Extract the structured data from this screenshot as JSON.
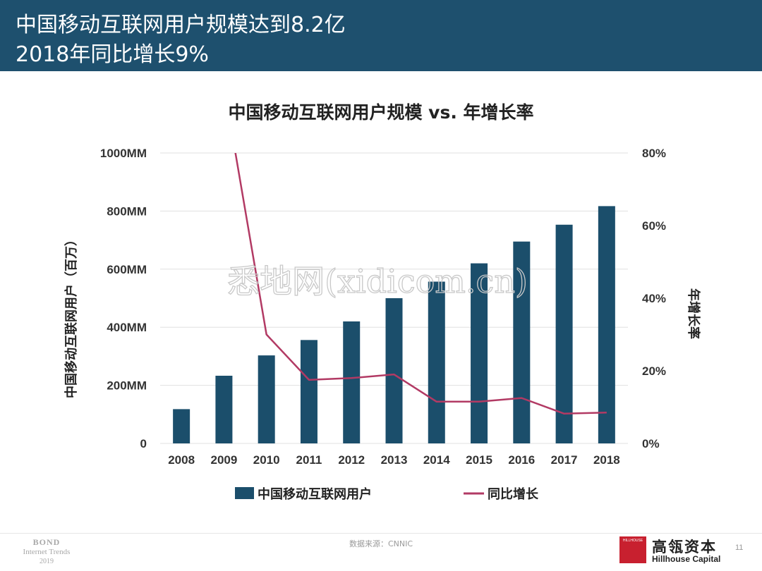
{
  "header": {
    "line1": "中国移动互联网用户规模达到8.2亿",
    "line2": "2018年同比增长9%"
  },
  "chart_data": {
    "type": "bar",
    "title": "中国移动互联网用户规模 vs. 年增长率",
    "categories": [
      "2008",
      "2009",
      "2010",
      "2011",
      "2012",
      "2013",
      "2014",
      "2015",
      "2016",
      "2017",
      "2018"
    ],
    "series": [
      {
        "name": "中国移动互联网用户",
        "type": "bar",
        "axis": "left",
        "values": [
          118,
          233,
          303,
          356,
          420,
          500,
          557,
          620,
          695,
          753,
          817
        ]
      },
      {
        "name": "同比增长",
        "type": "line",
        "axis": "right",
        "values": [
          null,
          98.5,
          30.0,
          17.5,
          18.0,
          19.0,
          11.5,
          11.5,
          12.5,
          8.2,
          8.5
        ]
      }
    ],
    "ylabel": "中国移动互联网用户（百万）",
    "y2label": "年增长率",
    "ylim": [
      0,
      1000
    ],
    "y2lim": [
      0,
      80
    ],
    "yticks": [
      "0",
      "200MM",
      "400MM",
      "600MM",
      "800MM",
      "1000MM"
    ],
    "y2ticks": [
      "0%",
      "20%",
      "40%",
      "60%",
      "80%"
    ],
    "grid": true,
    "legend_position": "bottom",
    "colors": {
      "bar": "#1b4e6b",
      "line": "#b23a64",
      "grid": "#e0e0e0"
    }
  },
  "watermark": "悉地网(xidicom.cn)",
  "footer": {
    "source": "数据来源：CNNIC",
    "bond": [
      "BOND",
      "Internet Trends",
      "2019"
    ],
    "logo_box": "HILLHOUSE",
    "logo_cn": "高瓴资本",
    "logo_en": "Hillhouse Capital",
    "page": "11"
  }
}
